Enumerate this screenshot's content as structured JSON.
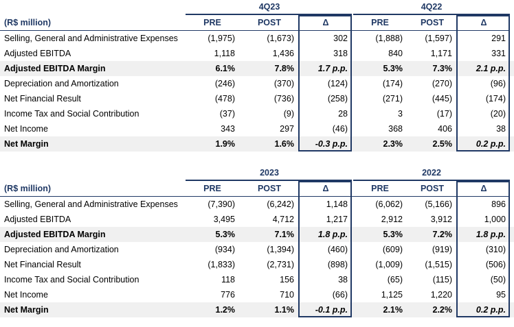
{
  "tables": [
    {
      "period_a": "4Q23",
      "period_b": "4Q22",
      "header": {
        "label": "(R$ million)",
        "pre": "PRE",
        "post": "POST",
        "delta": "Δ"
      },
      "rows": [
        {
          "label": "Selling, General and Administrative Expenses",
          "a_pre": "(1,975)",
          "a_post": "(1,673)",
          "a_delta": "302",
          "b_pre": "(1,888)",
          "b_post": "(1,597)",
          "b_delta": "291"
        },
        {
          "label": "Adjusted EBITDA",
          "a_pre": "1,118",
          "a_post": "1,436",
          "a_delta": "318",
          "b_pre": "840",
          "b_post": "1,171",
          "b_delta": "331"
        },
        {
          "label": "Adjusted EBITDA Margin",
          "a_pre": "6.1%",
          "a_post": "7.8%",
          "a_delta": "1.7 p.p.",
          "b_pre": "5.3%",
          "b_post": "7.3%",
          "b_delta": "2.1 p.p."
        },
        {
          "label": "Depreciation and Amortization",
          "a_pre": "(246)",
          "a_post": "(370)",
          "a_delta": "(124)",
          "b_pre": "(174)",
          "b_post": "(270)",
          "b_delta": "(96)"
        },
        {
          "label": "Net Financial Result",
          "a_pre": "(478)",
          "a_post": "(736)",
          "a_delta": "(258)",
          "b_pre": "(271)",
          "b_post": "(445)",
          "b_delta": "(174)"
        },
        {
          "label": "Income Tax and Social Contribution",
          "a_pre": "(37)",
          "a_post": "(9)",
          "a_delta": "28",
          "b_pre": "3",
          "b_post": "(17)",
          "b_delta": "(20)"
        },
        {
          "label": "Net Income",
          "a_pre": "343",
          "a_post": "297",
          "a_delta": "(46)",
          "b_pre": "368",
          "b_post": "406",
          "b_delta": "38"
        },
        {
          "label": "Net Margin",
          "a_pre": "1.9%",
          "a_post": "1.6%",
          "a_delta": "-0.3 p.p.",
          "b_pre": "2.3%",
          "b_post": "2.5%",
          "b_delta": "0.2 p.p."
        }
      ]
    },
    {
      "period_a": "2023",
      "period_b": "2022",
      "header": {
        "label": "(R$ million)",
        "pre": "PRE",
        "post": "POST",
        "delta": "Δ"
      },
      "rows": [
        {
          "label": "Selling, General and Administrative Expenses",
          "a_pre": "(7,390)",
          "a_post": "(6,242)",
          "a_delta": "1,148",
          "b_pre": "(6,062)",
          "b_post": "(5,166)",
          "b_delta": "896"
        },
        {
          "label": "Adjusted EBITDA",
          "a_pre": "3,495",
          "a_post": "4,712",
          "a_delta": "1,217",
          "b_pre": "2,912",
          "b_post": "3,912",
          "b_delta": "1,000"
        },
        {
          "label": "Adjusted EBITDA Margin",
          "a_pre": "5.3%",
          "a_post": "7.1%",
          "a_delta": "1.8 p.p.",
          "b_pre": "5.3%",
          "b_post": "7.2%",
          "b_delta": "1.8 p.p."
        },
        {
          "label": "Depreciation and Amortization",
          "a_pre": "(934)",
          "a_post": "(1,394)",
          "a_delta": "(460)",
          "b_pre": "(609)",
          "b_post": "(919)",
          "b_delta": "(310)"
        },
        {
          "label": "Net Financial Result",
          "a_pre": "(1,833)",
          "a_post": "(2,731)",
          "a_delta": "(898)",
          "b_pre": "(1,009)",
          "b_post": "(1,515)",
          "b_delta": "(506)"
        },
        {
          "label": "Income Tax and Social Contribution",
          "a_pre": "118",
          "a_post": "156",
          "a_delta": "38",
          "b_pre": "(65)",
          "b_post": "(115)",
          "b_delta": "(50)"
        },
        {
          "label": "Net Income",
          "a_pre": "776",
          "a_post": "710",
          "a_delta": "(66)",
          "b_pre": "1,125",
          "b_post": "1,220",
          "b_delta": "95"
        },
        {
          "label": "Net Margin",
          "a_pre": "1.2%",
          "a_post": "1.1%",
          "a_delta": "-0.1 p.p.",
          "b_pre": "2.1%",
          "b_post": "2.2%",
          "b_delta": "0.2 p.p."
        }
      ]
    }
  ],
  "colors": {
    "header_blue": "#1f3864",
    "row_shade": "#f0f0f0"
  }
}
